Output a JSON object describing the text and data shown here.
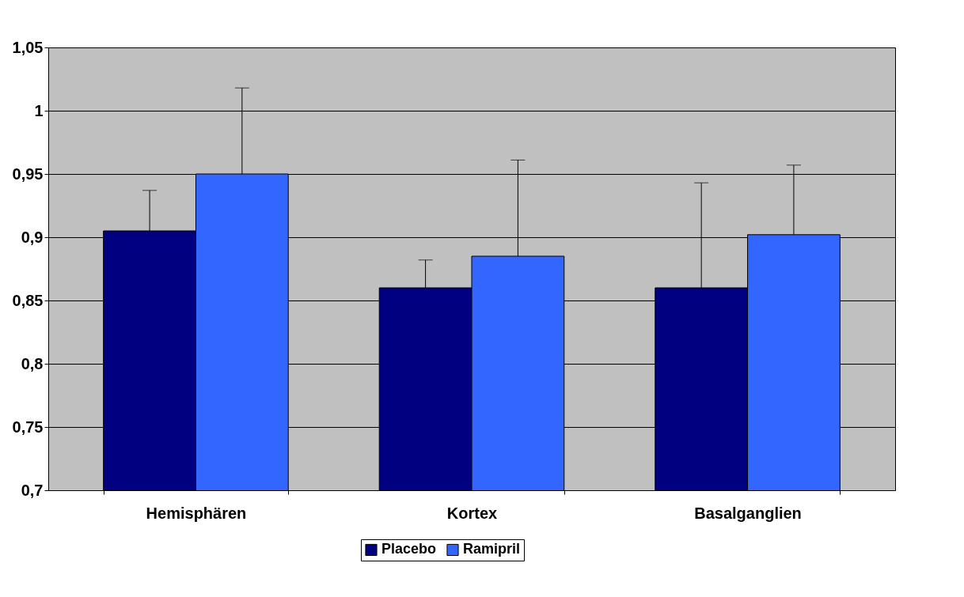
{
  "chart_data": {
    "type": "bar",
    "categories": [
      "Hemisphären",
      "Kortex",
      "Basalganglien"
    ],
    "series": [
      {
        "name": "Placebo",
        "color": "#000080",
        "values": [
          0.905,
          0.86,
          0.86
        ],
        "errors": [
          [
            0.905,
            0.937
          ],
          [
            0.86,
            0.882
          ],
          [
            0.86,
            0.943
          ]
        ]
      },
      {
        "name": "Ramipril",
        "color": "#3366ff",
        "values": [
          0.95,
          0.885,
          0.902
        ],
        "errors": [
          [
            0.95,
            1.018
          ],
          [
            0.885,
            0.961
          ],
          [
            0.902,
            0.957
          ]
        ]
      }
    ],
    "ylim": [
      0.7,
      1.05
    ],
    "yticks": [
      {
        "value": 0.7,
        "label": "0,7"
      },
      {
        "value": 0.75,
        "label": "0,75"
      },
      {
        "value": 0.8,
        "label": "0,8"
      },
      {
        "value": 0.85,
        "label": "0,85"
      },
      {
        "value": 0.9,
        "label": "0,9"
      },
      {
        "value": 0.95,
        "label": "0,95"
      },
      {
        "value": 1,
        "label": "1"
      },
      {
        "value": 1.05,
        "label": "1,05"
      }
    ],
    "grid": "y",
    "legend": "bottom"
  }
}
